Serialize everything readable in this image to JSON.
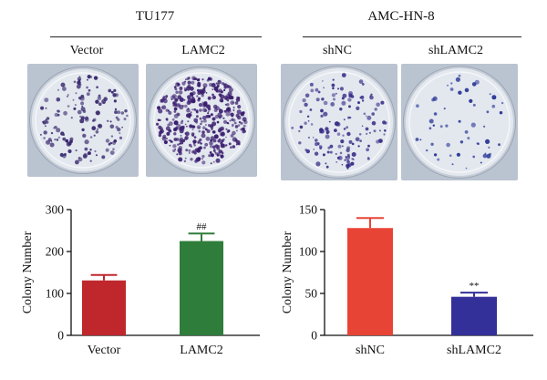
{
  "panels": [
    {
      "group": "TU177",
      "columns": [
        "Vector",
        "LAMC2"
      ]
    },
    {
      "group": "AMC-HN-8",
      "columns": [
        "shNC",
        "shLAMC2"
      ]
    }
  ],
  "plates": [
    {
      "density": "medium",
      "colony_color": "#3a2a6e"
    },
    {
      "density": "high",
      "colony_color": "#3b1e6e"
    },
    {
      "density": "medium",
      "colony_color": "#3a2f88"
    },
    {
      "density": "low",
      "colony_color": "#2e3a98"
    }
  ],
  "chart_data": [
    {
      "type": "bar",
      "categories": [
        "Vector",
        "LAMC2"
      ],
      "values": [
        131,
        225
      ],
      "errors": [
        13,
        18
      ],
      "annotations": [
        "",
        "##"
      ],
      "colors": [
        "#c0272d",
        "#2f7d3a"
      ],
      "title": "",
      "xlabel": "",
      "ylabel": "Colony Number",
      "ylim": [
        0,
        300
      ],
      "yticks": [
        0,
        100,
        200,
        300
      ],
      "grid": false
    },
    {
      "type": "bar",
      "categories": [
        "shNC",
        "shLAMC2"
      ],
      "values": [
        128,
        46
      ],
      "errors": [
        12,
        5
      ],
      "annotations": [
        "",
        "**"
      ],
      "colors": [
        "#e84436",
        "#34309a"
      ],
      "title": "",
      "xlabel": "",
      "ylabel": "Colony Number",
      "ylim": [
        0,
        150
      ],
      "yticks": [
        0,
        50,
        100,
        150
      ],
      "grid": false
    }
  ]
}
